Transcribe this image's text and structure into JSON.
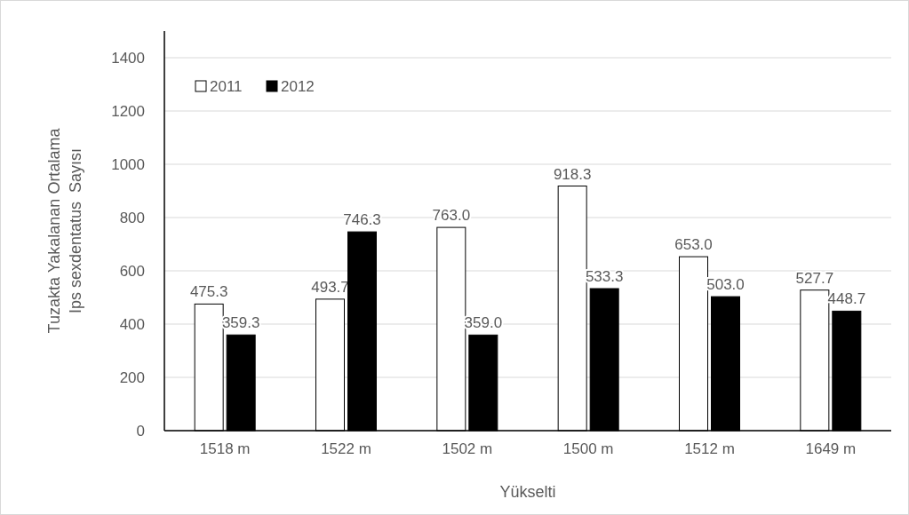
{
  "chart_data": {
    "type": "bar",
    "xlabel": "Yükselti",
    "ylabel": "Tuzakta Yakalanan Ortalama\nIps sexdentatus  Sayısı",
    "categories": [
      "1518 m",
      "1522 m",
      "1502 m",
      "1500 m",
      "1512 m",
      "1649 m"
    ],
    "series": [
      {
        "name": "2011",
        "color": "#ffffff",
        "values": [
          475.3,
          493.7,
          763.0,
          918.3,
          653.0,
          527.7
        ],
        "value_labels": [
          "475.3",
          "493.7",
          "763.0",
          "918.3",
          "653.0",
          "527.7"
        ]
      },
      {
        "name": "2012",
        "color": "#000000",
        "values": [
          359.3,
          746.3,
          359.0,
          533.3,
          503.0,
          448.7
        ],
        "value_labels": [
          "359.3",
          "746.3",
          "359.0",
          "533.3",
          "503.0",
          "448.7"
        ]
      }
    ],
    "ylim": [
      0,
      1500
    ],
    "yticks": [
      0,
      200,
      400,
      600,
      800,
      1000,
      1200,
      1400
    ],
    "grid": "y",
    "legend": "top left"
  }
}
